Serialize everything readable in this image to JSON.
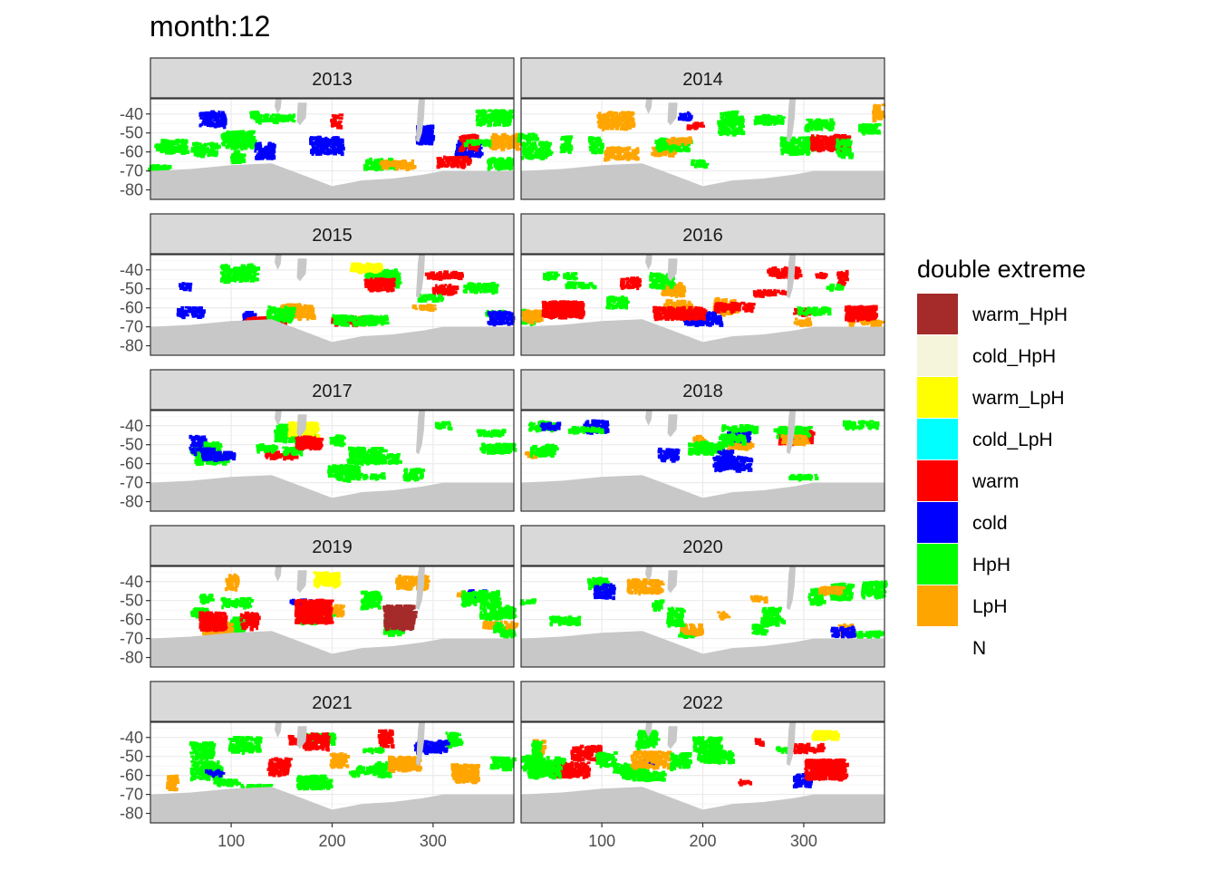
{
  "chart_data": {
    "type": "heatmap",
    "title": "month:12",
    "xlabel": "",
    "ylabel": "",
    "x_ticks": [
      "100",
      "200",
      "300"
    ],
    "x_tick_values": [
      100,
      200,
      300
    ],
    "y_ticks": [
      "-40",
      "-50",
      "-60",
      "-70",
      "-80"
    ],
    "y_tick_values": [
      -40,
      -50,
      -60,
      -70,
      -80
    ],
    "xlim": [
      20,
      380
    ],
    "ylim": [
      -85,
      -32
    ],
    "facets": [
      "2013",
      "2014",
      "2015",
      "2016",
      "2017",
      "2018",
      "2019",
      "2020",
      "2021",
      "2022"
    ],
    "legend": {
      "title": "double extreme",
      "entries": [
        {
          "label": "warm_HpH",
          "color": "#a52a2a"
        },
        {
          "label": "cold_HpH",
          "color": "#f5f5dc"
        },
        {
          "label": "warm_LpH",
          "color": "#ffff00"
        },
        {
          "label": "cold_LpH",
          "color": "#00ffff"
        },
        {
          "label": "warm",
          "color": "#ff0000"
        },
        {
          "label": "cold",
          "color": "#0000ff"
        },
        {
          "label": "HpH",
          "color": "#00ff00"
        },
        {
          "label": "LpH",
          "color": "#ffa500"
        },
        {
          "label": "N",
          "color": "#ffffff"
        }
      ]
    },
    "land_color": "#c8c8c8",
    "strip_color": "#d9d9d9"
  }
}
